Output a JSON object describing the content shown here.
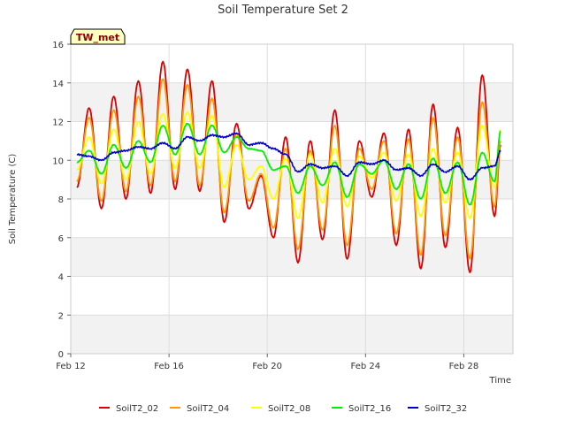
{
  "chart_data": {
    "type": "line",
    "title": "Soil Temperature Set 2",
    "xlabel": "Time",
    "ylabel": "Soil Temperature (C)",
    "badge": "TW_met",
    "ylim": [
      0,
      16
    ],
    "xlim": [
      "2023-02-12",
      "2023-03-02"
    ],
    "yticks": [
      "0",
      "2",
      "4",
      "6",
      "8",
      "10",
      "12",
      "14",
      "16"
    ],
    "xticks": [
      {
        "date": "2023-02-12",
        "label": "Feb 12"
      },
      {
        "date": "2023-02-16",
        "label": "Feb 16"
      },
      {
        "date": "2023-02-20",
        "label": "Feb 20"
      },
      {
        "date": "2023-02-24",
        "label": "Feb 24"
      },
      {
        "date": "2023-02-28",
        "label": "Feb 28"
      }
    ],
    "grid": true,
    "legend_position": "bottom",
    "x": [
      "2023-02-12 06:00",
      "2023-02-12 18:00",
      "2023-02-13 06:00",
      "2023-02-13 18:00",
      "2023-02-14 06:00",
      "2023-02-14 18:00",
      "2023-02-15 06:00",
      "2023-02-15 18:00",
      "2023-02-16 06:00",
      "2023-02-16 18:00",
      "2023-02-17 06:00",
      "2023-02-17 18:00",
      "2023-02-18 06:00",
      "2023-02-18 18:00",
      "2023-02-19 06:00",
      "2023-02-19 18:00",
      "2023-02-20 06:00",
      "2023-02-20 18:00",
      "2023-02-21 06:00",
      "2023-02-21 18:00",
      "2023-02-22 06:00",
      "2023-02-22 18:00",
      "2023-02-23 06:00",
      "2023-02-23 18:00",
      "2023-02-24 06:00",
      "2023-02-24 18:00",
      "2023-02-25 06:00",
      "2023-02-25 18:00",
      "2023-02-26 06:00",
      "2023-02-26 18:00",
      "2023-02-27 06:00",
      "2023-02-27 18:00",
      "2023-02-28 06:00",
      "2023-02-28 18:00",
      "2023-03-01 06:00",
      "2023-03-01 12:00"
    ],
    "series": [
      {
        "name": "SoilT2_02",
        "color": "#dd0000",
        "values": [
          8.6,
          12.7,
          7.5,
          13.3,
          8.0,
          14.1,
          8.3,
          15.1,
          8.5,
          14.7,
          8.4,
          14.1,
          6.8,
          11.9,
          7.5,
          9.2,
          6.0,
          11.2,
          4.7,
          11.0,
          5.9,
          12.6,
          4.9,
          11.0,
          8.1,
          11.4,
          5.6,
          11.6,
          4.4,
          12.9,
          5.5,
          11.7,
          4.2,
          14.4,
          7.1,
          10.8
        ]
      },
      {
        "name": "SoilT2_04",
        "color": "#ff9900",
        "values": [
          8.9,
          12.2,
          7.9,
          12.6,
          8.4,
          13.3,
          8.7,
          14.2,
          8.9,
          13.9,
          8.7,
          13.2,
          7.3,
          11.4,
          7.9,
          9.3,
          6.5,
          10.6,
          5.4,
          10.5,
          6.4,
          11.8,
          5.6,
          10.6,
          8.5,
          11.0,
          6.2,
          11.1,
          5.1,
          12.2,
          6.1,
          11.2,
          4.9,
          13.0,
          7.6,
          11.0
        ]
      },
      {
        "name": "SoilT2_08",
        "color": "#ffff00",
        "values": [
          9.5,
          11.2,
          8.8,
          11.6,
          9.0,
          12.0,
          9.3,
          12.4,
          9.6,
          12.5,
          9.6,
          12.3,
          8.6,
          10.8,
          9.0,
          9.7,
          8.0,
          10.1,
          7.0,
          10.3,
          7.8,
          10.6,
          7.6,
          10.2,
          9.1,
          10.4,
          7.9,
          10.3,
          7.1,
          10.6,
          7.8,
          10.4,
          7.0,
          11.8,
          8.6,
          11.6
        ]
      },
      {
        "name": "SoilT2_16",
        "color": "#00ee00",
        "values": [
          9.9,
          10.5,
          9.3,
          10.8,
          9.6,
          11.0,
          9.9,
          11.8,
          10.3,
          11.9,
          10.3,
          11.8,
          10.4,
          11.2,
          10.6,
          10.5,
          9.5,
          9.7,
          8.3,
          9.7,
          8.7,
          9.9,
          8.1,
          9.8,
          9.3,
          10.0,
          8.5,
          9.8,
          8.0,
          10.1,
          8.3,
          9.9,
          7.7,
          10.4,
          8.9,
          11.5
        ]
      },
      {
        "name": "SoilT2_32",
        "color": "#0000cc",
        "values": [
          10.3,
          10.2,
          10.0,
          10.4,
          10.5,
          10.7,
          10.6,
          10.9,
          10.6,
          11.2,
          11.0,
          11.3,
          11.2,
          11.4,
          10.8,
          10.9,
          10.6,
          10.3,
          9.4,
          9.8,
          9.6,
          9.7,
          9.2,
          9.9,
          9.8,
          10.0,
          9.5,
          9.6,
          9.2,
          9.8,
          9.4,
          9.7,
          9.0,
          9.6,
          9.7,
          10.5
        ]
      }
    ]
  }
}
